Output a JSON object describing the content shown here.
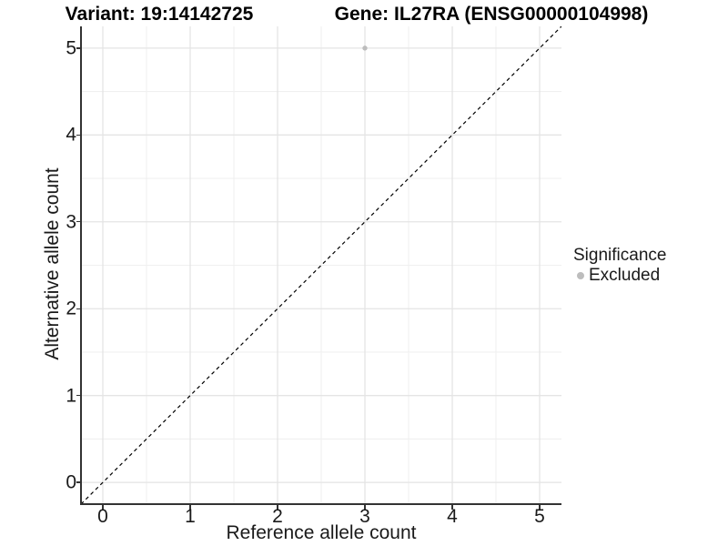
{
  "header": {
    "variant_title": "Variant: 19:14142725",
    "gene_title": "Gene: IL27RA (ENSG00000104998)"
  },
  "legend": {
    "title": "Significance",
    "items": [
      {
        "label": "Excluded",
        "color": "#bdbdbd"
      }
    ]
  },
  "colors": {
    "background": "#ffffff",
    "grid_major": "#e4e4e4",
    "grid_minor": "#f0f0f0",
    "axis_line": "#333333",
    "text": "#1a1a1a",
    "excluded_point": "#bdbdbd",
    "identity_line": "#000000"
  },
  "chart_data": {
    "type": "scatter",
    "title": "Variant: 19:14142725 | Gene: IL27RA (ENSG00000104998)",
    "xlabel": "Reference allele count",
    "ylabel": "Alternative allele count",
    "xlim": [
      -0.25,
      5.25
    ],
    "ylim": [
      -0.25,
      5.25
    ],
    "x_ticks": [
      0,
      1,
      2,
      3,
      4,
      5
    ],
    "y_ticks": [
      0,
      1,
      2,
      3,
      4,
      5
    ],
    "minor_step": 0.5,
    "grid": true,
    "legend_position": "right",
    "series": [
      {
        "name": "Excluded",
        "color": "#bdbdbd",
        "points": [
          {
            "x": 3,
            "y": 5
          }
        ]
      }
    ],
    "reference_line": {
      "type": "identity",
      "style": "dashed",
      "color": "#000000",
      "from": [
        -0.25,
        -0.25
      ],
      "to": [
        5.25,
        5.25
      ]
    }
  }
}
